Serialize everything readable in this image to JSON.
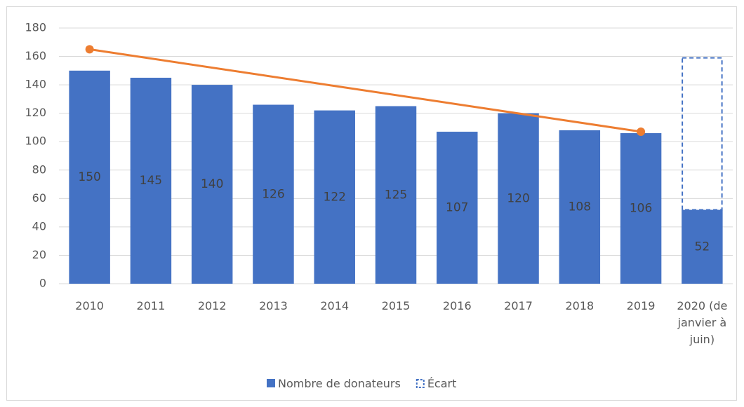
{
  "chart_data": {
    "type": "bar",
    "categories": [
      "2010",
      "2011",
      "2012",
      "2013",
      "2014",
      "2015",
      "2016",
      "2017",
      "2018",
      "2019",
      "2020 (de janvier à juin)"
    ],
    "series": [
      {
        "name": "Nombre de donateurs",
        "color": "#4472c4",
        "values": [
          150,
          145,
          140,
          126,
          122,
          125,
          107,
          120,
          108,
          106,
          52
        ]
      },
      {
        "name": "Écart",
        "color": "#4472c4",
        "style": "dashed",
        "values": [
          null,
          null,
          null,
          null,
          null,
          null,
          null,
          null,
          null,
          null,
          107
        ]
      }
    ],
    "trend": {
      "color": "#ed7d31",
      "categories": [
        "2010",
        "2019"
      ],
      "values": [
        165,
        107
      ]
    },
    "ylim": [
      0,
      180
    ],
    "yticks": [
      0,
      20,
      40,
      60,
      80,
      100,
      120,
      140,
      160,
      180
    ],
    "grid": true,
    "legend": "bottom"
  }
}
